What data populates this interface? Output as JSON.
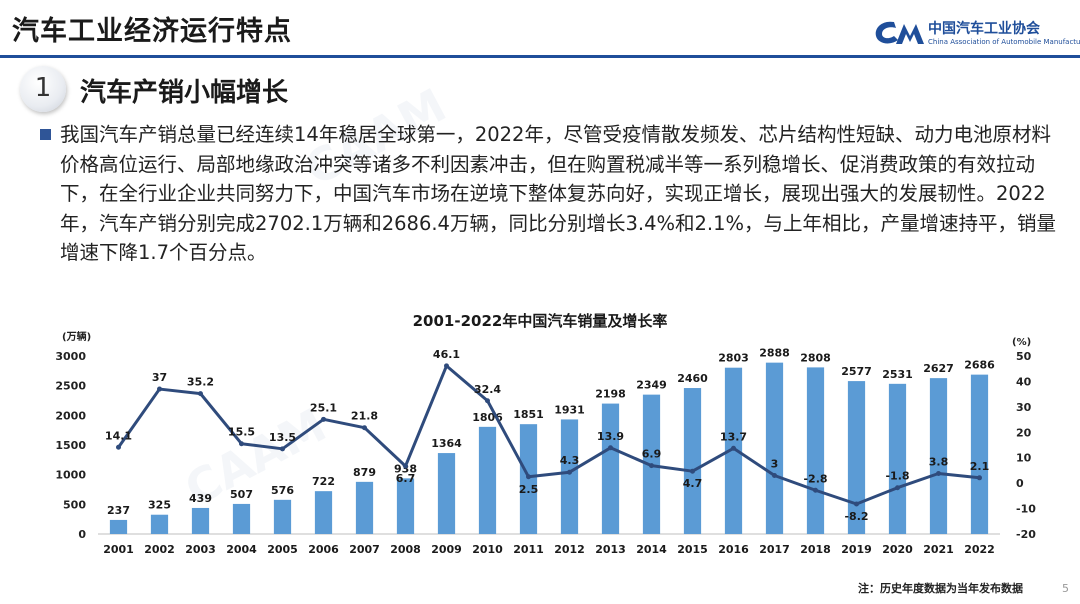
{
  "header": {
    "title": "汽车工业经济运行特点",
    "logo_cn": "中国汽车工业协会",
    "logo_en": "China Association of Automobile Manufacturers"
  },
  "section": {
    "number": "1",
    "title": "汽车产销小幅增长"
  },
  "body_text": "我国汽车产销总量已经连续14年稳居全球第一，2022年，尽管受疫情散发频发、芯片结构性短缺、动力电池原材料价格高位运行、局部地缘政治冲突等诸多不利因素冲击，但在购置税减半等一系列稳增长、促消费政策的有效拉动下，在全行业企业共同努力下，中国汽车市场在逆境下整体复苏向好，实现正增长，展现出强大的发展韧性。2022年，汽车产销分别完成2702.1万辆和2686.4万辆，同比分别增长3.4%和2.1%，与上年相比，产量增速持平，销量增速下降1.7个百分点。",
  "note": "注：历史年度数据为当年发布数据",
  "page_number": "5",
  "chart_data": {
    "type": "bar",
    "title": "2001-2022年中国汽车销量及增长率",
    "ylabel_left": "(万辆)",
    "ylabel_right": "(%)",
    "ylim_left": [
      0,
      3000
    ],
    "ylim_right": [
      -20,
      50
    ],
    "yticks_left": [
      0,
      500,
      1000,
      1500,
      2000,
      2500,
      3000
    ],
    "yticks_right": [
      -20,
      -10,
      0,
      10,
      20,
      30,
      40,
      50
    ],
    "categories": [
      "2001",
      "2002",
      "2003",
      "2004",
      "2005",
      "2006",
      "2007",
      "2008",
      "2009",
      "2010",
      "2011",
      "2012",
      "2013",
      "2014",
      "2015",
      "2016",
      "2017",
      "2018",
      "2019",
      "2020",
      "2021",
      "2022"
    ],
    "series": [
      {
        "type": "bar",
        "axis": "left",
        "values": [
          237,
          325,
          439,
          507,
          576,
          722,
          879,
          938,
          1364,
          1806,
          1851,
          1931,
          2198,
          2349,
          2460,
          2803,
          2888,
          2808,
          2577,
          2531,
          2627,
          2686
        ]
      },
      {
        "type": "line",
        "axis": "right",
        "values": [
          14.1,
          37,
          35.2,
          15.5,
          13.5,
          25.1,
          21.8,
          6.7,
          46.1,
          32.4,
          2.5,
          4.3,
          13.9,
          6.9,
          4.7,
          13.7,
          3.0,
          -2.8,
          -8.2,
          -1.8,
          3.8,
          2.1
        ]
      }
    ],
    "colors": {
      "bar": "#5b9bd5",
      "line": "#2f4b7c"
    },
    "grid": false
  }
}
